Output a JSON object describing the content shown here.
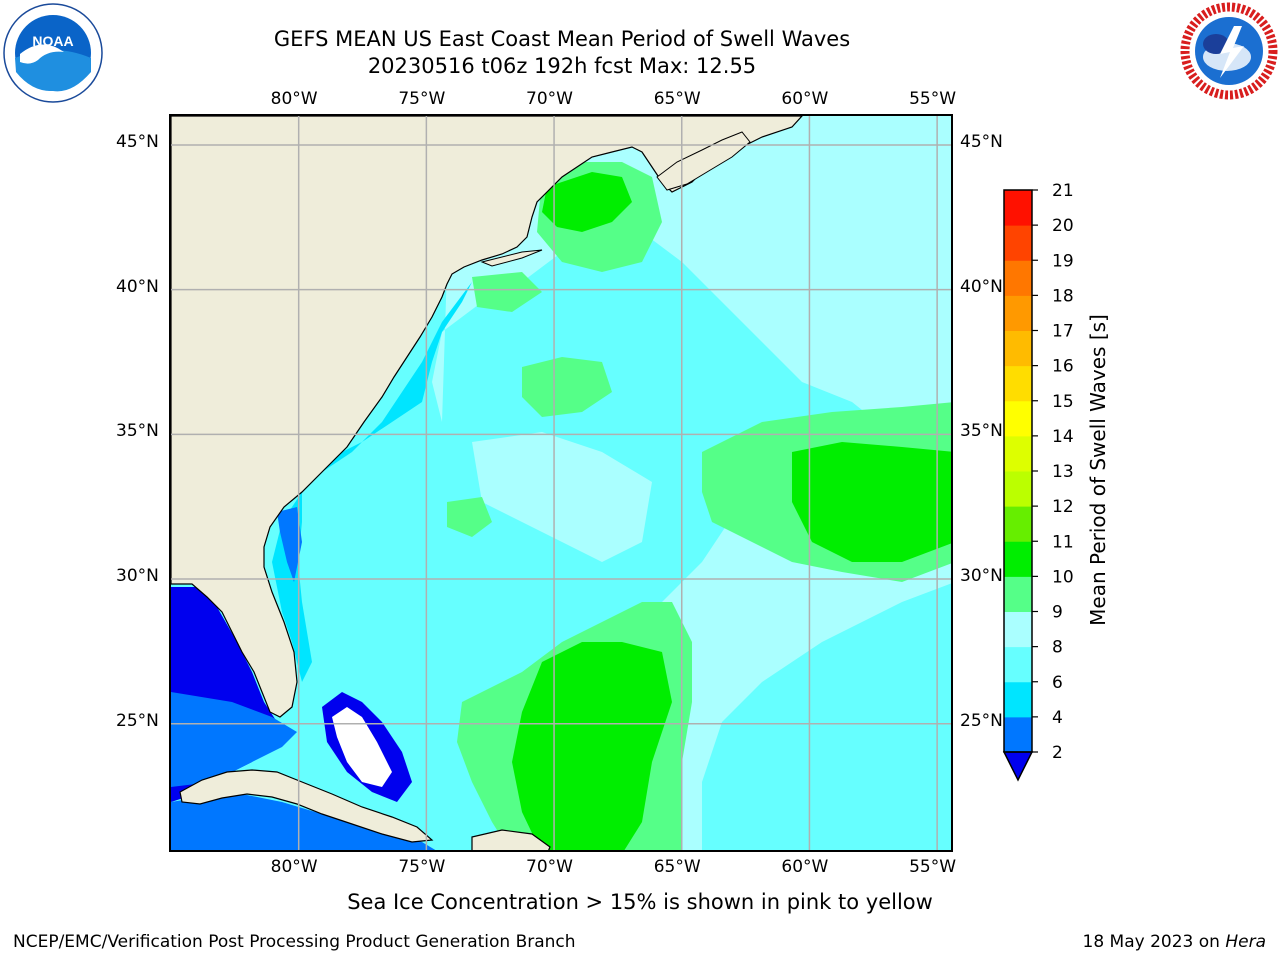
{
  "header": {
    "title_line1": "GEFS MEAN US East Coast Mean Period of Swell Waves",
    "title_line2": "20230516 t06z 192h fcst   Max: 12.55"
  },
  "logos": {
    "noaa": {
      "text": "NOAA",
      "ring_text": "NATIONAL OCEANIC AND ATMOSPHERIC ADMINISTRATION · U.S. DEPARTMENT OF COMMERCE"
    },
    "nws": {
      "ring_text": "NATIONAL WEATHER SERVICE"
    }
  },
  "map": {
    "lon_labels": [
      "80°W",
      "75°W",
      "70°W",
      "65°W",
      "60°W",
      "55°W"
    ],
    "lat_labels": [
      "45°N",
      "40°N",
      "35°N",
      "30°N",
      "25°N"
    ],
    "lon_values": [
      -80,
      -75,
      -70,
      -65,
      -60,
      -55
    ],
    "lat_values": [
      45,
      40,
      35,
      30,
      25
    ],
    "extent": {
      "lon_min": -85,
      "lon_max": -54.3,
      "lat_min": 20.5,
      "lat_max": 46
    },
    "land_color": "#efedda",
    "grid_color": "#b0b0b0"
  },
  "colorbar": {
    "label": "Mean Period of Swell Waves [s]",
    "levels": [
      2,
      4,
      6,
      8,
      9,
      10,
      11,
      12,
      13,
      14,
      15,
      16,
      17,
      18,
      19,
      20,
      21
    ],
    "colors": [
      "#0077ff",
      "#00e5ff",
      "#66ffff",
      "#aaffff",
      "#55ff88",
      "#00ee00",
      "#66ee00",
      "#bbff00",
      "#ddff00",
      "#ffff00",
      "#ffdd00",
      "#ffbb00",
      "#ff9900",
      "#ff7700",
      "#ff4400",
      "#ff1100"
    ],
    "under_color": "#0000ee"
  },
  "notes": {
    "ice": "Sea Ice Concentration > 15% is shown in pink to yellow"
  },
  "footer": {
    "left": "NCEP/EMC/Verification Post Processing Product Generation Branch",
    "right_prefix": "18 May 2023 on ",
    "right_host": "Hera"
  }
}
